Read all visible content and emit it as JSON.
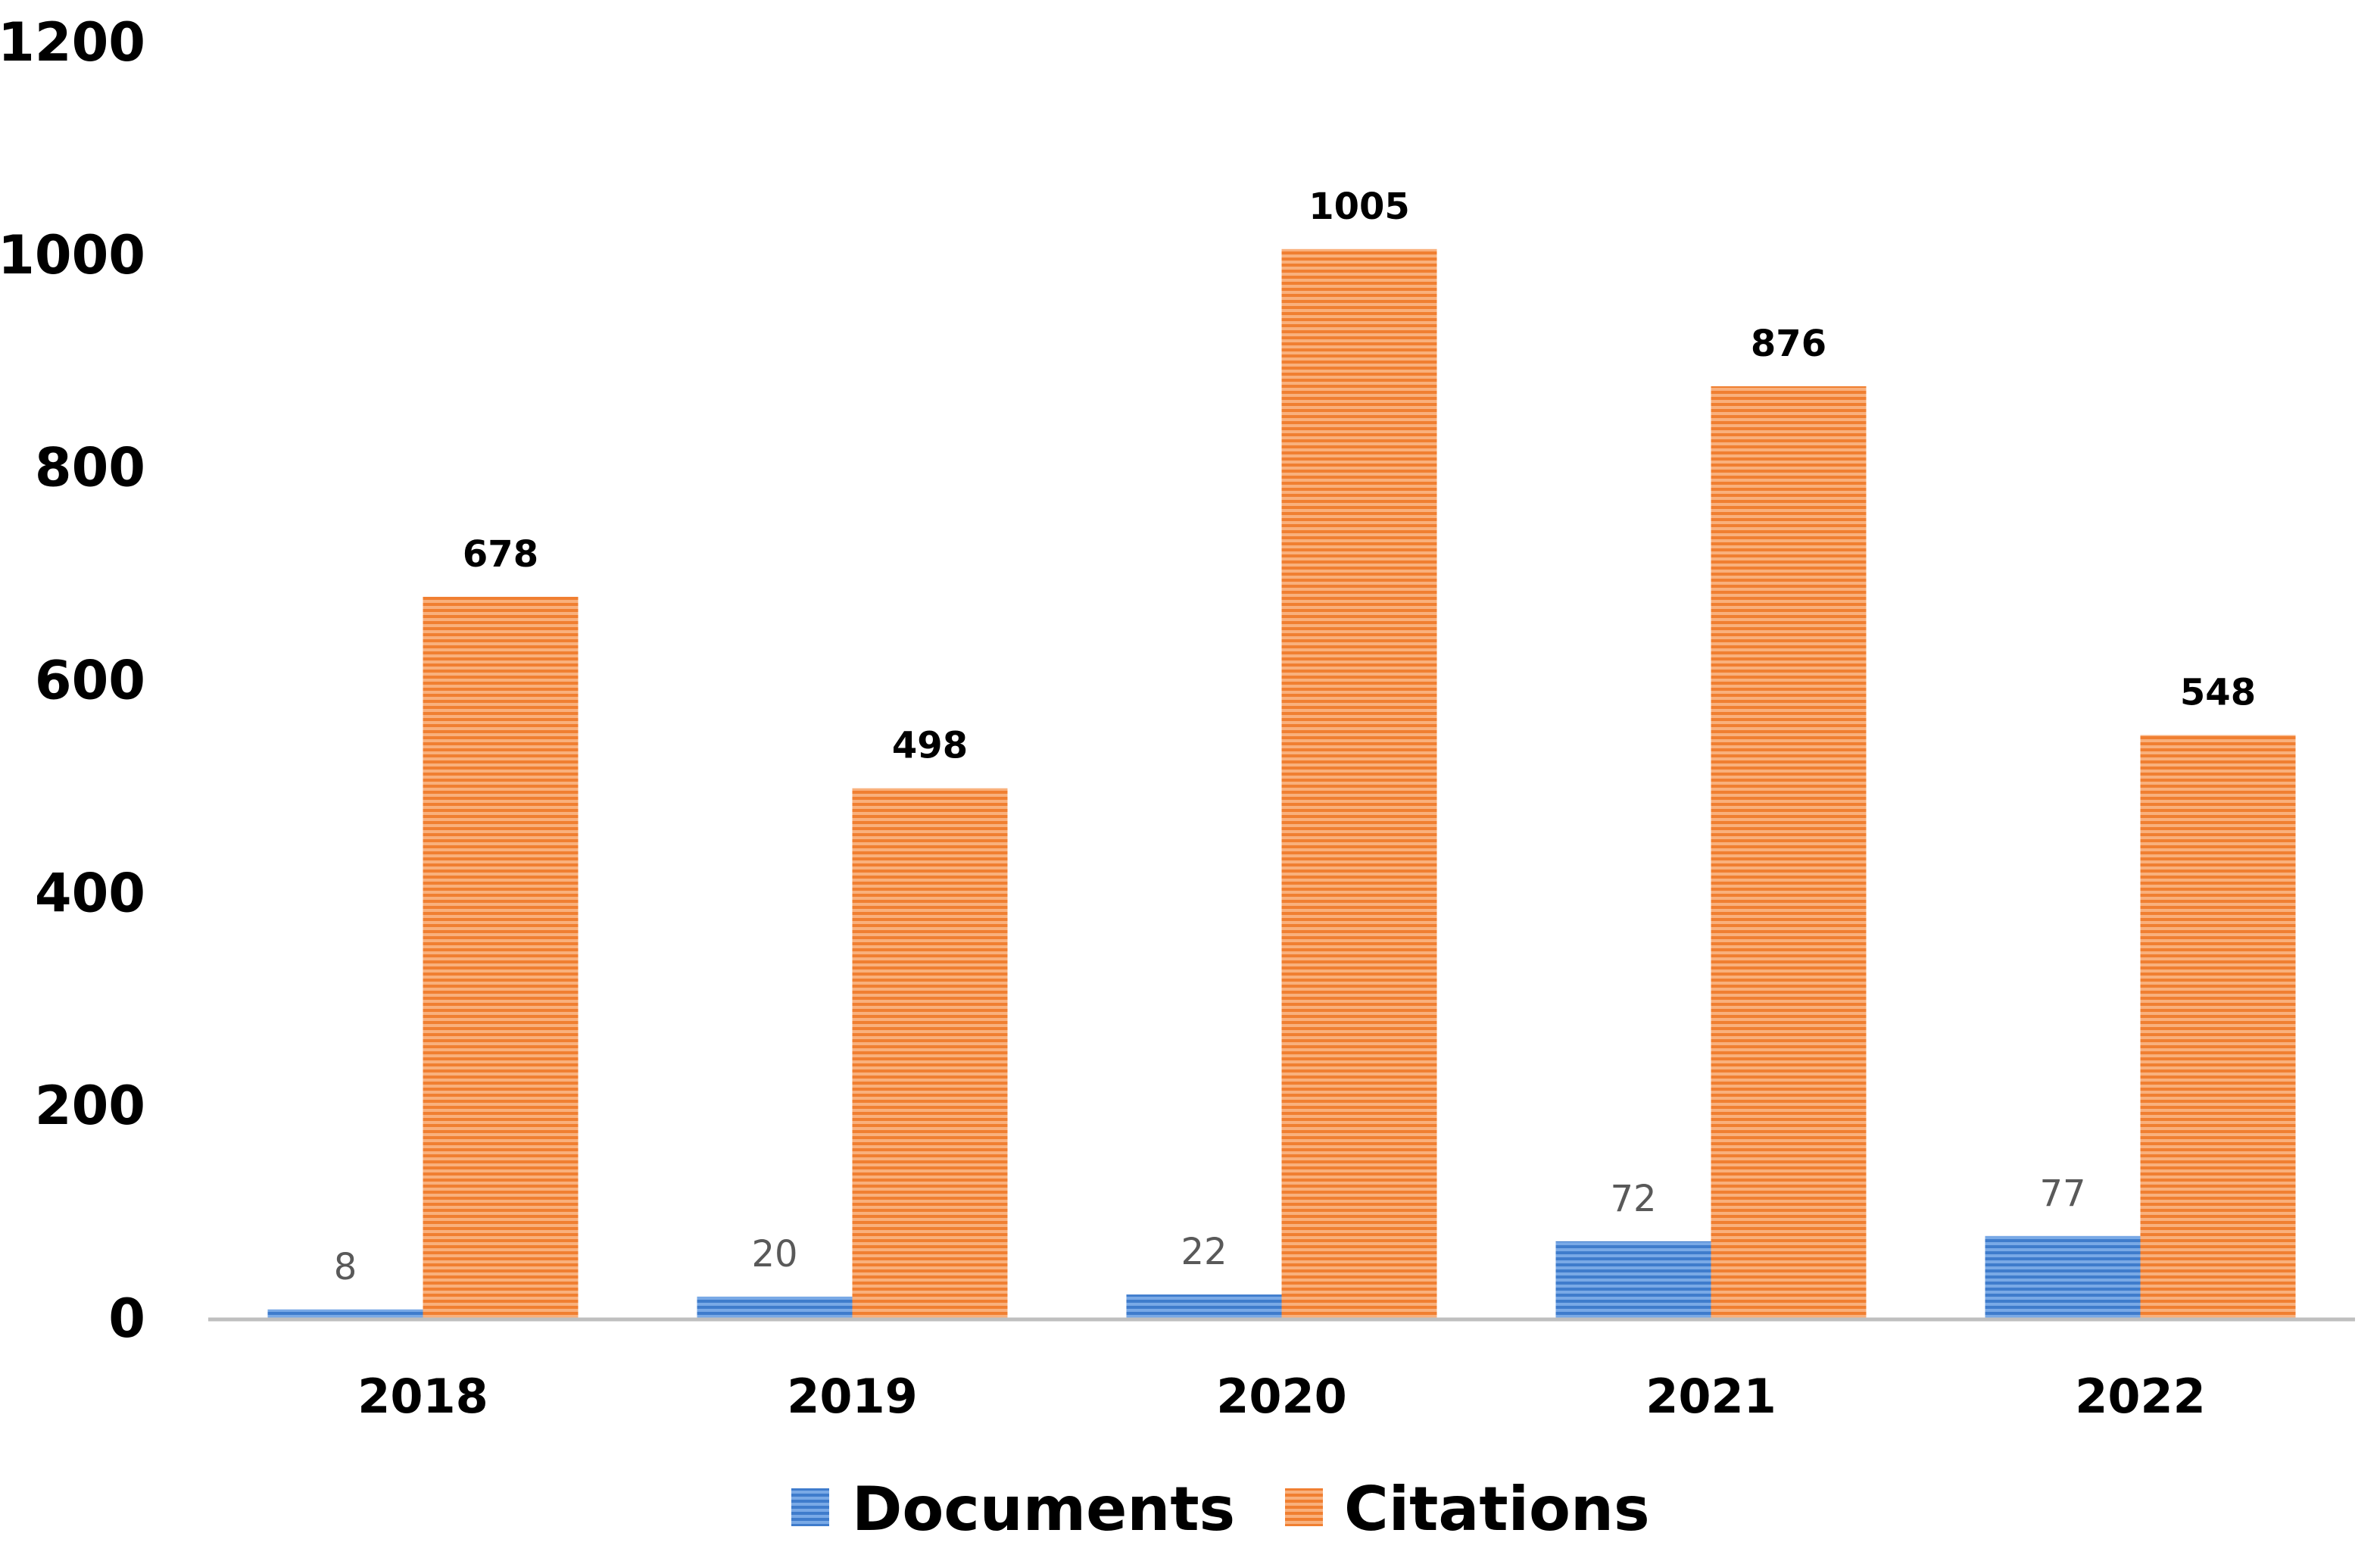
{
  "chart_data": {
    "type": "bar",
    "categories": [
      "2018",
      "2019",
      "2020",
      "2021",
      "2022"
    ],
    "series": [
      {
        "name": "Documents",
        "values": [
          8,
          20,
          22,
          72,
          77
        ],
        "color": "#4a86d4"
      },
      {
        "name": "Citations",
        "values": [
          678,
          498,
          1005,
          876,
          548
        ],
        "color": "#f08b45"
      }
    ],
    "ylim": [
      0,
      1200
    ],
    "yticks": [
      "0",
      "200",
      "400",
      "600",
      "800",
      "1000",
      "1200"
    ],
    "data_labels": {
      "Documents": [
        "8",
        "20",
        "22",
        "72",
        "77"
      ],
      "Citations": [
        "678",
        "498",
        "1005",
        "876",
        "548"
      ]
    },
    "grid": false,
    "legend": "bottom",
    "colors": {
      "axis": "#bfbfbf",
      "documents": "#4a86d4",
      "citations": "#f08b45"
    }
  }
}
